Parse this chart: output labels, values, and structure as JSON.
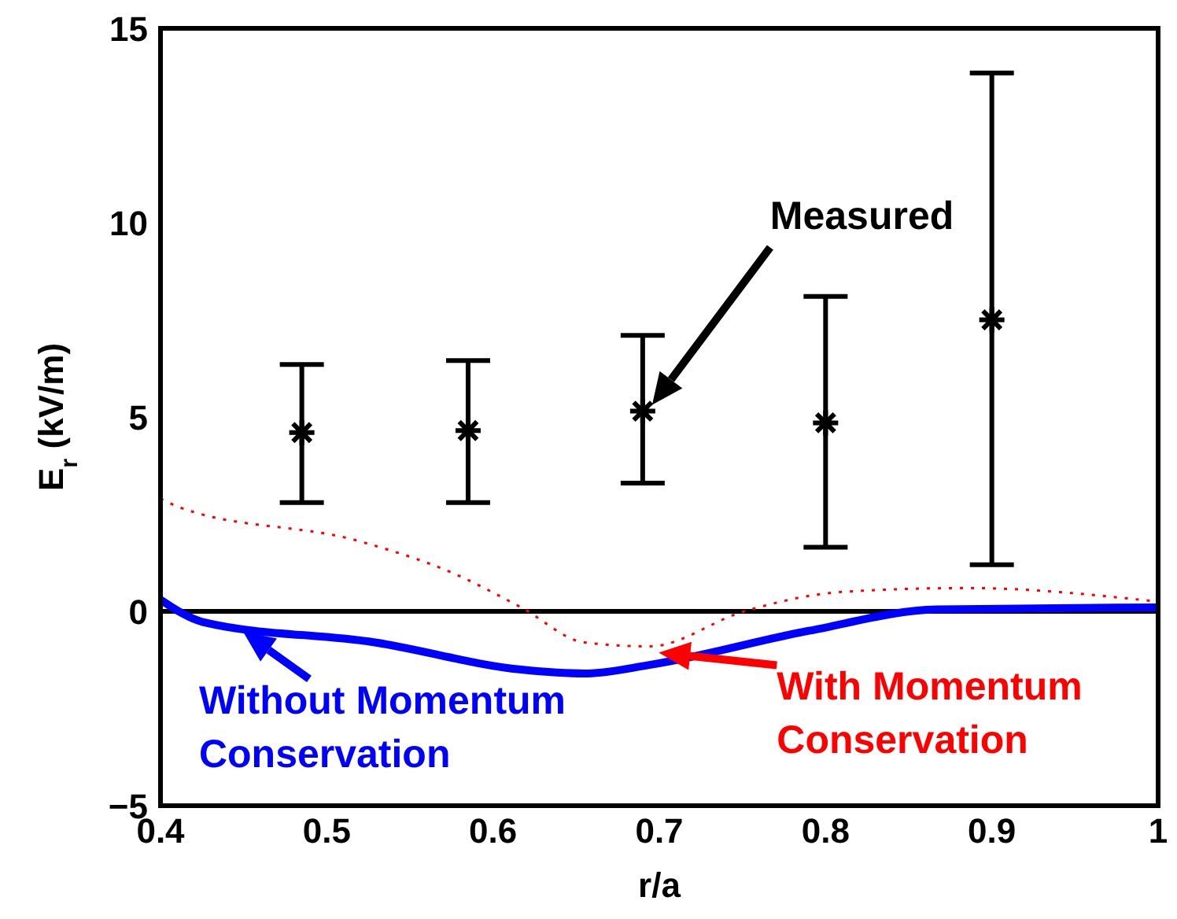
{
  "chart_data": {
    "type": "scatter",
    "xlabel": "r/a",
    "ylabel": "E$_{r}$ (kV/m)",
    "xlim": [
      0.4,
      1
    ],
    "xticks": [
      0.4,
      0.5,
      0.6,
      0.7,
      0.8,
      0.9,
      {
        "value": 1,
        "label": "1"
      }
    ],
    "ylim": [
      -5,
      15
    ],
    "yticks": [
      {
        "value": -5,
        "label": "−5"
      },
      0,
      5,
      10,
      15
    ],
    "ref_lines": [
      {
        "axis": "y",
        "value": 0,
        "color": "#000000"
      }
    ],
    "series": [
      {
        "name": "Measured",
        "color": "#000000",
        "marker": "cross",
        "x": [
          0.485,
          0.585,
          0.69,
          0.8,
          0.9
        ],
        "values": [
          4.6,
          4.65,
          5.15,
          4.85,
          7.5
        ],
        "errors": [
          [
            2.8,
            6.35
          ],
          [
            2.8,
            6.45
          ],
          [
            3.3,
            7.1
          ],
          [
            1.65,
            8.1
          ],
          [
            1.2,
            13.85
          ]
        ]
      },
      {
        "name": "Without Momentum Conservation",
        "type": "line",
        "color": "#0000ff",
        "line_style": "solid",
        "marker": "none",
        "x": [
          0.4,
          0.426,
          0.529,
          0.617,
          0.655,
          0.694,
          0.79,
          0.867,
          1.0
        ],
        "values": [
          0.3,
          -0.28,
          -0.8,
          -1.5,
          -1.6,
          -1.38,
          -0.5,
          0.05,
          0.1
        ]
      },
      {
        "name": "With Momentum Conservation",
        "type": "line",
        "color": "#ff0000",
        "line_style": "dotted",
        "marker": "none",
        "x": [
          0.4,
          0.41,
          0.52,
          0.575,
          0.617,
          0.655,
          0.694,
          0.751,
          0.81,
          0.885,
          1.0
        ],
        "values": [
          2.9,
          2.7,
          1.8,
          1.0,
          0.1,
          -0.8,
          -0.9,
          0,
          0.5,
          0.6,
          0.25
        ]
      }
    ]
  }
}
